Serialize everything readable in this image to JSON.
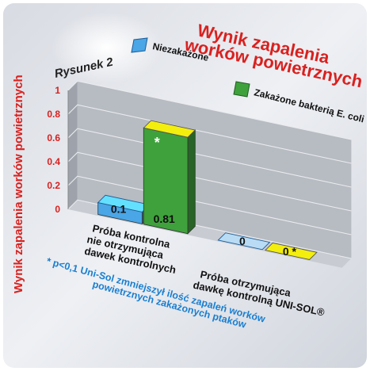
{
  "chart_data": {
    "type": "bar",
    "figure_label": "Rysunek 2",
    "title_lines": [
      "Wynik zapalenia",
      "worków powietrznych"
    ],
    "ylabel": "Wynik zapalenia worków powietrznych",
    "ylim": [
      0,
      1
    ],
    "yticks": [
      "0",
      "0.2",
      "0.4",
      "0.6",
      "0.8",
      "1"
    ],
    "groups": [
      {
        "label_lines": [
          "Próba kontrolna",
          "nie otrzymująca",
          "dawek kontrolnych"
        ]
      },
      {
        "label_lines": [
          "Próba otrzymująca",
          "dawkę kontrolną UNI-SOL®"
        ]
      }
    ],
    "series": [
      {
        "name": "Niezakażone",
        "color": "#4aa6e6",
        "values": [
          0.1,
          0
        ],
        "value_labels": [
          "0.1",
          "0"
        ],
        "asterisk": [
          false,
          false
        ]
      },
      {
        "name": "Zakażone bakterią E. coli",
        "color": "#3fa13c",
        "values": [
          0.81,
          0
        ],
        "value_labels": [
          "0.81",
          "0 *"
        ],
        "asterisk": [
          true,
          true
        ]
      }
    ],
    "zero_bar_color": "#f3ee0e",
    "footnote_lines": [
      "* p<0,1 Uni-Sol zmniejszył ilość zapaleń worków",
      "powietrznych zakażonych ptaków"
    ],
    "title_color": "#d9211f",
    "ylabel_color": "#d9211f",
    "footnote_color": "#1a7fd0"
  }
}
